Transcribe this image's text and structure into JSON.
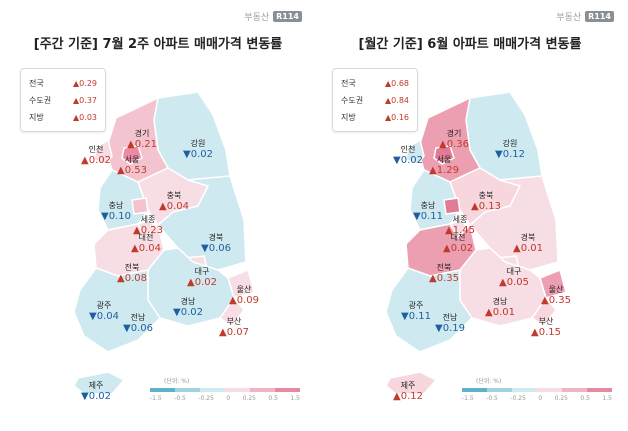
{
  "brand": {
    "name": "부동산",
    "badge": "R114"
  },
  "legend": {
    "unit": "(단위: %)",
    "ticks": [
      "-1.5",
      "-0.5",
      "-0.25",
      "0",
      "0.25",
      "0.5",
      "1.5"
    ],
    "colors": [
      "#5fb3c9",
      "#9ed3e0",
      "#cfe9f0",
      "#f7dce3",
      "#f2b3c2",
      "#e68aa0"
    ]
  },
  "panels": [
    {
      "id": "weekly",
      "title": "[주간 기준] 7월 2주 아파트 매매가격 변동률",
      "summary": [
        {
          "name": "전국",
          "value": "▲0.29"
        },
        {
          "name": "수도권",
          "value": "▲0.37"
        },
        {
          "name": "지방",
          "value": "▲0.03"
        }
      ],
      "regions": [
        {
          "name": "인천",
          "value": "▲0.02",
          "dir": "up",
          "fill": "#f7dde4"
        },
        {
          "name": "서울",
          "value": "▲0.53",
          "dir": "up",
          "fill": "#e98ca3"
        },
        {
          "name": "경기",
          "value": "▲0.21",
          "dir": "up",
          "fill": "#f3c4cf"
        },
        {
          "name": "강원",
          "value": "▼0.02",
          "dir": "down",
          "fill": "#cfe9f0"
        },
        {
          "name": "충남",
          "value": "▼0.10",
          "dir": "down",
          "fill": "#cfe9f0"
        },
        {
          "name": "충북",
          "value": "▲0.04",
          "dir": "up",
          "fill": "#f7dde4"
        },
        {
          "name": "세종",
          "value": "▲0.23",
          "dir": "up",
          "fill": "#f3c4cf"
        },
        {
          "name": "대전",
          "value": "▲0.04",
          "dir": "up",
          "fill": "#f7dde4"
        },
        {
          "name": "경북",
          "value": "▼0.06",
          "dir": "down",
          "fill": "#cfe9f0"
        },
        {
          "name": "전북",
          "value": "▲0.08",
          "dir": "up",
          "fill": "#f7dde4"
        },
        {
          "name": "대구",
          "value": "▲0.02",
          "dir": "up",
          "fill": "#f7dde4"
        },
        {
          "name": "울산",
          "value": "▲0.09",
          "dir": "up",
          "fill": "#f7dde4"
        },
        {
          "name": "경남",
          "value": "▼0.02",
          "dir": "down",
          "fill": "#cfe9f0"
        },
        {
          "name": "광주",
          "value": "▼0.04",
          "dir": "down",
          "fill": "#cfe9f0"
        },
        {
          "name": "전남",
          "value": "▼0.06",
          "dir": "down",
          "fill": "#cfe9f0"
        },
        {
          "name": "부산",
          "value": "▲0.07",
          "dir": "up",
          "fill": "#f7dde4"
        },
        {
          "name": "제주",
          "value": "▼0.02",
          "dir": "down",
          "fill": "#cfe9f0"
        }
      ]
    },
    {
      "id": "monthly",
      "title": "[월간 기준] 6월 아파트 매매가격 변동률",
      "summary": [
        {
          "name": "전국",
          "value": "▲0.68"
        },
        {
          "name": "수도권",
          "value": "▲0.84"
        },
        {
          "name": "지방",
          "value": "▲0.16"
        }
      ],
      "regions": [
        {
          "name": "인천",
          "value": "▼0.02",
          "dir": "down",
          "fill": "#cfe9f0"
        },
        {
          "name": "서울",
          "value": "▲1.29",
          "dir": "up",
          "fill": "#e07b95"
        },
        {
          "name": "경기",
          "value": "▲0.36",
          "dir": "up",
          "fill": "#ec9fb1"
        },
        {
          "name": "강원",
          "value": "▼0.12",
          "dir": "down",
          "fill": "#cfe9f0"
        },
        {
          "name": "충남",
          "value": "▼0.11",
          "dir": "down",
          "fill": "#cfe9f0"
        },
        {
          "name": "충북",
          "value": "▲0.13",
          "dir": "up",
          "fill": "#f7d6de"
        },
        {
          "name": "세종",
          "value": "▲1.45",
          "dir": "up",
          "fill": "#e07b95"
        },
        {
          "name": "대전",
          "value": "▲0.02",
          "dir": "up",
          "fill": "#f7dde4"
        },
        {
          "name": "경북",
          "value": "▲0.01",
          "dir": "up",
          "fill": "#f7dde4"
        },
        {
          "name": "전북",
          "value": "▲0.35",
          "dir": "up",
          "fill": "#ec9fb1"
        },
        {
          "name": "대구",
          "value": "▲0.05",
          "dir": "up",
          "fill": "#f7dde4"
        },
        {
          "name": "울산",
          "value": "▲0.35",
          "dir": "up",
          "fill": "#ec9fb1"
        },
        {
          "name": "경남",
          "value": "▲0.01",
          "dir": "up",
          "fill": "#f7dde4"
        },
        {
          "name": "광주",
          "value": "▼0.11",
          "dir": "down",
          "fill": "#cfe9f0"
        },
        {
          "name": "전남",
          "value": "▼0.19",
          "dir": "down",
          "fill": "#cfe9f0"
        },
        {
          "name": "부산",
          "value": "▲0.15",
          "dir": "up",
          "fill": "#f7d6de"
        },
        {
          "name": "제주",
          "value": "▲0.12",
          "dir": "up",
          "fill": "#f7d6de"
        }
      ]
    }
  ]
}
